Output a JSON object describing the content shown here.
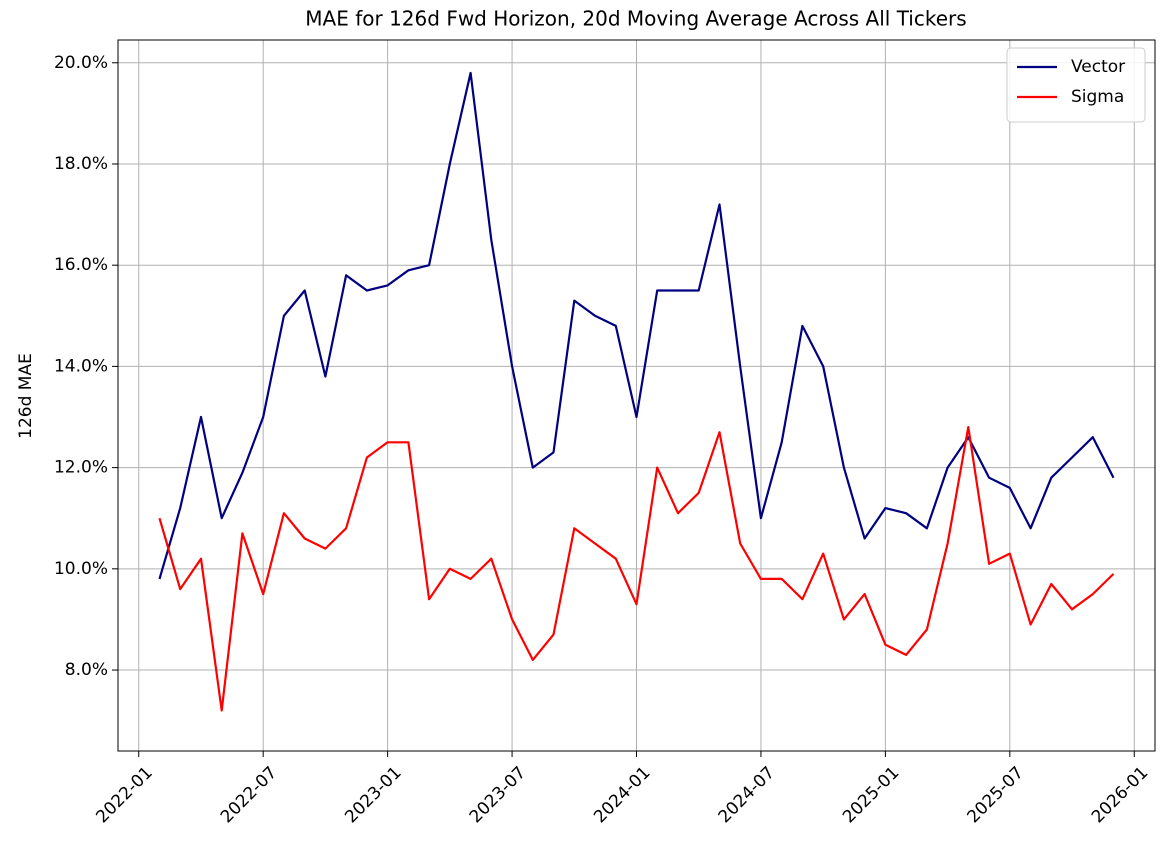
{
  "chart_data": {
    "type": "line",
    "title": "MAE for 126d Fwd Horizon, 20d Moving Average Across All Tickers",
    "y_label": "126d MAE",
    "x": [
      "2022-02",
      "2022-03",
      "2022-04",
      "2022-05",
      "2022-06",
      "2022-07",
      "2022-08",
      "2022-09",
      "2022-10",
      "2022-11",
      "2022-12",
      "2023-01",
      "2023-02",
      "2023-03",
      "2023-04",
      "2023-05",
      "2023-06",
      "2023-07",
      "2023-08",
      "2023-09",
      "2023-10",
      "2023-11",
      "2023-12",
      "2024-01",
      "2024-02",
      "2024-03",
      "2024-04",
      "2024-05",
      "2024-06",
      "2024-07",
      "2024-08",
      "2024-09",
      "2024-10",
      "2024-11",
      "2024-12",
      "2025-01",
      "2025-02",
      "2025-03",
      "2025-04",
      "2025-05",
      "2025-06",
      "2025-07",
      "2025-08",
      "2025-09",
      "2025-10",
      "2025-11",
      "2025-12"
    ],
    "series": [
      {
        "name": "Vector",
        "color": "#000080",
        "values": [
          9.8,
          11.2,
          13.0,
          11.0,
          11.9,
          13.0,
          15.0,
          15.5,
          13.8,
          15.8,
          15.5,
          15.6,
          15.9,
          16.0,
          18.0,
          19.8,
          16.5,
          14.0,
          12.0,
          12.3,
          15.3,
          15.0,
          14.8,
          13.0,
          15.5,
          15.5,
          15.5,
          17.2,
          14.0,
          11.0,
          12.5,
          14.8,
          14.0,
          12.0,
          10.6,
          11.2,
          11.1,
          10.8,
          12.0,
          12.6,
          11.8,
          11.6,
          10.8,
          11.8,
          12.2,
          12.6,
          11.8
        ]
      },
      {
        "name": "Sigma",
        "color": "#ff0000",
        "values": [
          11.0,
          9.6,
          10.2,
          7.2,
          10.7,
          9.5,
          11.1,
          10.6,
          10.4,
          10.8,
          12.2,
          12.5,
          12.5,
          9.4,
          10.0,
          9.8,
          10.2,
          9.0,
          8.2,
          8.7,
          10.8,
          10.5,
          10.2,
          9.3,
          12.0,
          11.1,
          11.5,
          12.7,
          10.5,
          9.8,
          9.8,
          9.4,
          10.3,
          9.0,
          9.5,
          8.5,
          8.3,
          8.8,
          10.5,
          12.8,
          10.1,
          10.3,
          8.9,
          9.7,
          9.2,
          9.5,
          9.9
        ]
      }
    ],
    "xlim": [
      "2021-12",
      "2026-02"
    ],
    "xticks": [
      "2022-01",
      "2022-07",
      "2023-01",
      "2023-07",
      "2024-01",
      "2024-07",
      "2025-01",
      "2025-07",
      "2026-01"
    ],
    "ylim": [
      6.4,
      20.45
    ],
    "yticks": [
      {
        "value": 8,
        "label": "8.0%"
      },
      {
        "value": 10,
        "label": "10.0%"
      },
      {
        "value": 12,
        "label": "12.0%"
      },
      {
        "value": 14,
        "label": "14.0%"
      },
      {
        "value": 16,
        "label": "16.0%"
      },
      {
        "value": 18,
        "label": "18.0%"
      },
      {
        "value": 20,
        "label": "20.0%"
      }
    ],
    "grid": true,
    "legend": "upper right"
  }
}
